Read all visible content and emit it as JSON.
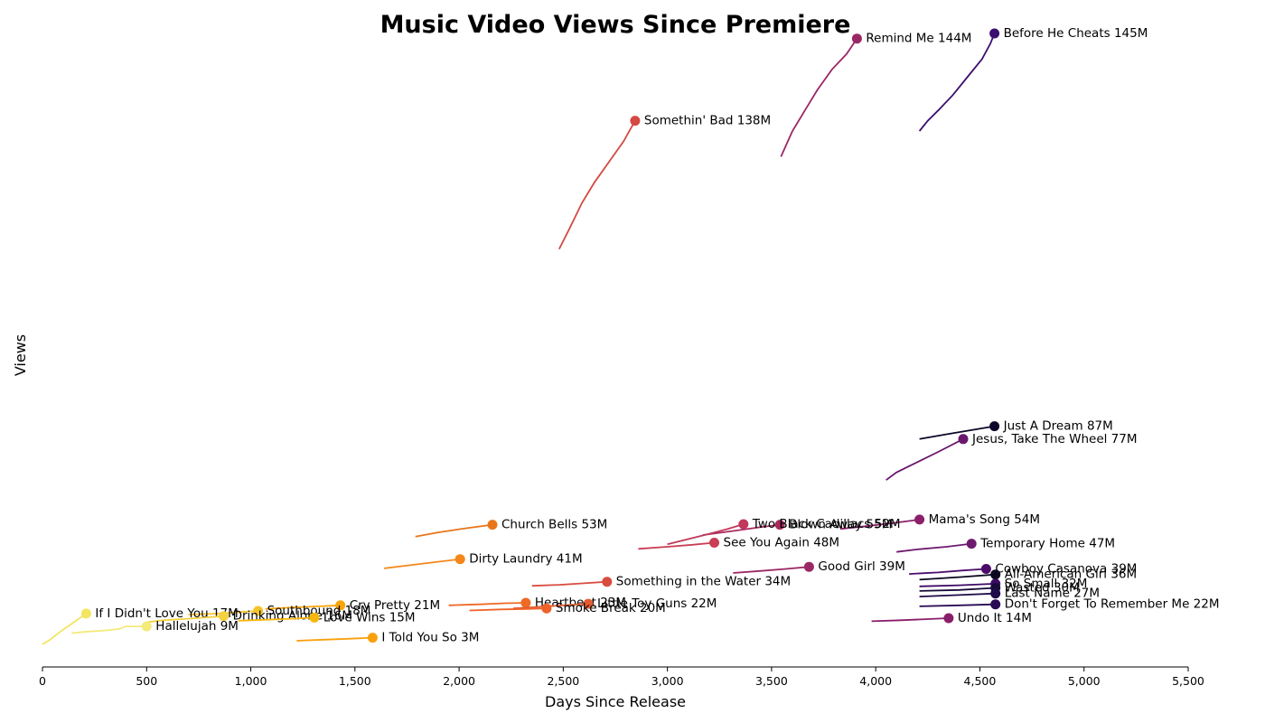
{
  "chart_data": {
    "type": "line",
    "title": "Music Video Views Since Premiere",
    "xlabel": "Days Since Release",
    "ylabel": "Views",
    "xlim": [
      0,
      5500
    ],
    "x_ticks": [
      "0",
      "500",
      "1,000",
      "1,500",
      "2,000",
      "2,500",
      "3,000",
      "3,500",
      "4,000",
      "4,500",
      "5,000",
      "5,500"
    ],
    "y_ticks_shown": false,
    "grid": false,
    "legend": "none",
    "series": [
      {
        "label": "Before He Cheats 145M",
        "color": "#3b0f6f",
        "x": [
          4210,
          4250,
          4300,
          4370,
          4450,
          4510,
          4550,
          4570
        ],
        "y": [
          118,
          120,
          122,
          125,
          129,
          132,
          135,
          137
        ]
      },
      {
        "label": "Remind Me 144M",
        "color": "#9a2865",
        "x": [
          3545,
          3600,
          3660,
          3720,
          3790,
          3860,
          3910
        ],
        "y": [
          113,
          118,
          122,
          126,
          130,
          133,
          136
        ]
      },
      {
        "label": "Somethin' Bad 138M",
        "color": "#d44842",
        "x": [
          2480,
          2530,
          2590,
          2650,
          2720,
          2790,
          2845
        ],
        "y": [
          95,
          99,
          104,
          108,
          112,
          116,
          120
        ]
      },
      {
        "label": "Just A Dream 87M",
        "color": "#0d0829",
        "x": [
          4210,
          4350,
          4570
        ],
        "y": [
          58,
          59,
          60.5
        ]
      },
      {
        "label": "Jesus, Take The Wheel 77M",
        "color": "#6a176e",
        "x": [
          4050,
          4100,
          4200,
          4300,
          4420
        ],
        "y": [
          50,
          51.5,
          53.5,
          55.5,
          58
        ]
      },
      {
        "label": "Mama's Song 54M",
        "color": "#8c1e6a",
        "x": [
          3830,
          3950,
          4080,
          4210
        ],
        "y": [
          40.5,
          41,
          41.6,
          42.3
        ]
      },
      {
        "label": "Blown Away 55M",
        "color": "#a82a5e",
        "x": [
          3170,
          3300,
          3440,
          3540
        ],
        "y": [
          39.3,
          40,
          40.8,
          41.3
        ]
      },
      {
        "label": "Two Black Cadillacs 52M",
        "color": "#c1385a",
        "x": [
          3000,
          3100,
          3200,
          3290,
          3365
        ],
        "y": [
          37.5,
          38.5,
          39.5,
          40.5,
          41.4
        ]
      },
      {
        "label": "Church Bells 53M",
        "color": "#e8751a",
        "x": [
          1790,
          1900,
          2030,
          2160
        ],
        "y": [
          39,
          39.8,
          40.6,
          41.3
        ]
      },
      {
        "label": "See You Again 48M",
        "color": "#c93d55",
        "x": [
          2860,
          3000,
          3120,
          3225
        ],
        "y": [
          36.6,
          37,
          37.4,
          37.8
        ]
      },
      {
        "label": "Temporary Home 47M",
        "color": "#6e1a6e",
        "x": [
          4100,
          4200,
          4340,
          4460
        ],
        "y": [
          36,
          36.5,
          37,
          37.6
        ]
      },
      {
        "label": "Dirty Laundry 41M",
        "color": "#f48718",
        "x": [
          1640,
          1760,
          1880,
          2005
        ],
        "y": [
          32.8,
          33.4,
          34,
          34.6
        ]
      },
      {
        "label": "Good Girl 39M",
        "color": "#9b2865",
        "x": [
          3315,
          3450,
          3570,
          3680
        ],
        "y": [
          31.9,
          32.3,
          32.7,
          33.1
        ]
      },
      {
        "label": "Cowboy Casanova 39M",
        "color": "#4b0c6b",
        "x": [
          4160,
          4300,
          4420,
          4530
        ],
        "y": [
          31.7,
          32,
          32.4,
          32.7
        ]
      },
      {
        "label": "All-American Girl 36M",
        "color": "#0a0720",
        "x": [
          4210,
          4400,
          4575
        ],
        "y": [
          30.6,
          31.1,
          31.6
        ]
      },
      {
        "label": "Something in the Water 34M",
        "color": "#d84c3e",
        "x": [
          2350,
          2480,
          2600,
          2710
        ],
        "y": [
          29.4,
          29.6,
          29.9,
          30.2
        ]
      },
      {
        "label": "So Small 32M",
        "color": "#3d0965",
        "x": [
          4210,
          4400,
          4575
        ],
        "y": [
          29.3,
          29.5,
          29.8
        ]
      },
      {
        "label": "Wasted 30M",
        "color": "#160b39",
        "x": [
          4210,
          4400,
          4575
        ],
        "y": [
          28.4,
          28.6,
          29
        ]
      },
      {
        "label": "Last Name 27M",
        "color": "#1f0c48",
        "x": [
          4210,
          4400,
          4575
        ],
        "y": [
          27.3,
          27.6,
          27.9
        ]
      },
      {
        "label": "Heartbeat 23M",
        "color": "#ef6a24",
        "x": [
          1950,
          2100,
          2220,
          2320
        ],
        "y": [
          25.6,
          25.8,
          26,
          26.1
        ]
      },
      {
        "label": "Little Toy Guns 22M",
        "color": "#e55c30",
        "x": [
          2260,
          2380,
          2500,
          2620
        ],
        "y": [
          25,
          25.3,
          25.6,
          25.9
        ]
      },
      {
        "label": "Smoke Break 20M",
        "color": "#ee6229",
        "x": [
          2050,
          2200,
          2320,
          2420
        ],
        "y": [
          24.6,
          24.8,
          24.9,
          25
        ]
      },
      {
        "label": "Don't Forget To Remember Me 22M",
        "color": "#280b54",
        "x": [
          4210,
          4400,
          4575
        ],
        "y": [
          25.4,
          25.6,
          25.8
        ]
      },
      {
        "label": "Cry Pretty 21M",
        "color": "#f8a40a",
        "x": [
          1070,
          1200,
          1330,
          1430
        ],
        "y": [
          24.9,
          25.2,
          25.4,
          25.6
        ]
      },
      {
        "label": "Southbound 18M",
        "color": "#f5c32b",
        "x": [
          700,
          850,
          950,
          1035
        ],
        "y": [
          23.8,
          24,
          24.3,
          24.5
        ]
      },
      {
        "label": "If I Didn't Love You 17M",
        "color": "#f2e661",
        "x": [
          0,
          40,
          90,
          140,
          185,
          210
        ],
        "y": [
          18,
          19,
          20.6,
          22,
          23.3,
          24
        ]
      },
      {
        "label": "Drinking Alone 16M",
        "color": "#f4d13f",
        "x": [
          500,
          580,
          700,
          870
        ],
        "y": [
          22.3,
          22.7,
          23,
          23.5
        ]
      },
      {
        "label": "Love Wins 15M",
        "color": "#f8b70a",
        "x": [
          940,
          1080,
          1200,
          1305
        ],
        "y": [
          22.6,
          22.8,
          23,
          23.2
        ]
      },
      {
        "label": "Undo It 14M",
        "color": "#8a1e6a",
        "x": [
          3980,
          4120,
          4240,
          4350
        ],
        "y": [
          22.5,
          22.7,
          22.9,
          23.1
        ]
      },
      {
        "label": "Hallelujah 9M",
        "color": "#f4ea7a",
        "x": [
          140,
          220,
          300,
          370,
          400,
          500
        ],
        "y": [
          20.2,
          20.5,
          20.7,
          21,
          21.5,
          21.5
        ]
      },
      {
        "label": "I Told You So 3M",
        "color": "#f9a00c",
        "x": [
          1220,
          1350,
          1480,
          1585
        ],
        "y": [
          18.7,
          18.9,
          19.1,
          19.3
        ]
      }
    ]
  }
}
